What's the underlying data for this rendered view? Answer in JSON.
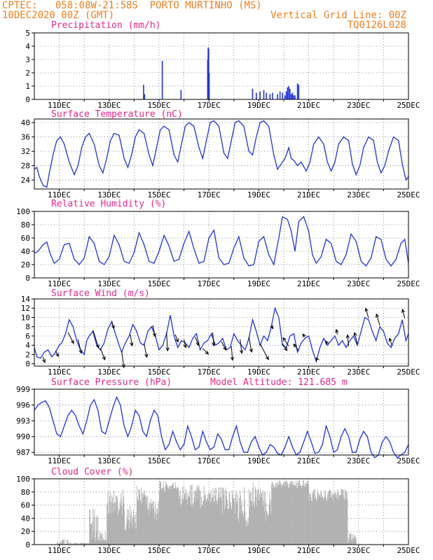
{
  "header": {
    "line1": "CPTEC:   058:08W-21:58S  PORTO MURTINHO (MS)",
    "line2": "10DEC2020 00Z (GMT)",
    "right1": "Vertical Grid Line: 00Z",
    "right2": "TQ0126L028"
  },
  "colors": {
    "header": "#f07f1e",
    "title": "#e8288c",
    "line": "#2233dd",
    "cloud": "#b0b0b0",
    "arrow": "#000000"
  },
  "x_tick_labels": [
    "11DEC",
    "13DEC",
    "15DEC",
    "17DEC",
    "19DEC",
    "21DEC",
    "23DEC",
    "25DEC"
  ],
  "chart_data": [
    {
      "id": "precip",
      "type": "bar",
      "title": "Precipitation (mm/h)",
      "x_unit": "days since 10DEC2020 00Z",
      "xlim": [
        0,
        15
      ],
      "yticks": [
        0,
        1,
        2,
        3,
        4,
        5
      ],
      "ylim": [
        0,
        5
      ],
      "x": [
        4.38,
        4.42,
        5.13,
        5.88,
        6.95,
        6.97,
        6.99,
        7.01,
        8.75,
        8.9,
        9.05,
        9.2,
        9.3,
        9.45,
        9.55,
        9.75,
        9.85,
        9.95,
        10.05,
        10.1,
        10.15,
        10.2,
        10.25,
        10.3,
        10.35,
        10.4,
        10.45,
        10.55,
        10.6
      ],
      "values": [
        1.1,
        0.4,
        2.9,
        0.7,
        3.0,
        3.9,
        3.8,
        2.0,
        0.8,
        0.5,
        0.6,
        0.7,
        0.5,
        0.4,
        0.5,
        0.4,
        0.6,
        0.5,
        0.3,
        0.6,
        0.9,
        1.0,
        0.8,
        0.4,
        0.5,
        0.3,
        0.3,
        1.2,
        1.1
      ]
    },
    {
      "id": "temp",
      "type": "line",
      "title": "Surface Temperature (nC)",
      "x_unit": "days since 10DEC2020 00Z",
      "xlim": [
        0,
        15
      ],
      "yticks": [
        24,
        28,
        32,
        36,
        40
      ],
      "ylim": [
        21.5,
        41
      ],
      "x": [
        0,
        0.1,
        0.2,
        0.35,
        0.5,
        0.6,
        0.75,
        0.9,
        1.05,
        1.2,
        1.4,
        1.6,
        1.75,
        1.9,
        2.05,
        2.2,
        2.4,
        2.6,
        2.75,
        2.9,
        3.05,
        3.2,
        3.4,
        3.6,
        3.75,
        3.9,
        4.05,
        4.2,
        4.4,
        4.6,
        4.75,
        4.9,
        5.05,
        5.2,
        5.4,
        5.6,
        5.75,
        5.9,
        6.05,
        6.2,
        6.4,
        6.6,
        6.75,
        6.9,
        7.05,
        7.2,
        7.4,
        7.6,
        7.75,
        7.9,
        8.05,
        8.2,
        8.4,
        8.6,
        8.75,
        8.9,
        9.05,
        9.2,
        9.4,
        9.6,
        9.75,
        9.9,
        10.05,
        10.2,
        10.3,
        10.4,
        10.55,
        10.7,
        10.9,
        11.05,
        11.2,
        11.4,
        11.6,
        11.75,
        11.9,
        12.05,
        12.2,
        12.4,
        12.6,
        12.75,
        12.9,
        13.05,
        13.2,
        13.4,
        13.6,
        13.75,
        13.9,
        14.05,
        14.2,
        14.4,
        14.6,
        14.75,
        14.9,
        15
      ],
      "values": [
        27,
        27.5,
        25,
        22.5,
        22,
        26,
        31,
        35,
        36,
        34,
        29,
        25.5,
        28,
        33,
        36,
        37,
        34,
        28,
        26,
        30,
        35,
        37,
        36.5,
        30,
        27.5,
        31,
        36,
        38,
        37,
        31,
        28,
        33,
        38,
        39,
        38,
        31,
        29,
        34,
        39,
        40,
        39,
        33,
        30,
        35,
        40,
        40.5,
        39,
        31.5,
        30,
        35,
        40,
        40.5,
        39,
        32,
        31,
        36,
        40,
        40.5,
        39,
        31,
        27,
        28.5,
        30,
        33,
        30,
        29.5,
        28,
        29,
        26.5,
        29,
        34,
        36,
        34,
        29,
        26.5,
        29,
        34,
        36,
        35,
        28.5,
        25.5,
        28,
        33,
        36,
        35,
        29,
        26,
        28,
        32,
        36,
        35,
        28.5,
        24,
        25
      ]
    },
    {
      "id": "rh",
      "type": "line",
      "title": "Relative Humidity (%)",
      "x_unit": "days since 10DEC2020 00Z",
      "xlim": [
        0,
        15
      ],
      "yticks": [
        0,
        20,
        40,
        60,
        80,
        100
      ],
      "ylim": [
        0,
        100
      ],
      "x": [
        0,
        0.15,
        0.35,
        0.5,
        0.65,
        0.8,
        1.0,
        1.2,
        1.4,
        1.6,
        1.8,
        2.0,
        2.2,
        2.4,
        2.6,
        2.8,
        3.0,
        3.2,
        3.4,
        3.6,
        3.8,
        4.0,
        4.2,
        4.4,
        4.6,
        4.8,
        5.0,
        5.2,
        5.4,
        5.6,
        5.8,
        6.0,
        6.2,
        6.4,
        6.6,
        6.8,
        7.0,
        7.2,
        7.4,
        7.6,
        7.8,
        8.0,
        8.2,
        8.4,
        8.6,
        8.8,
        9.0,
        9.2,
        9.4,
        9.6,
        9.8,
        9.95,
        10.15,
        10.3,
        10.45,
        10.6,
        10.8,
        11.0,
        11.15,
        11.3,
        11.5,
        11.7,
        11.9,
        12.1,
        12.3,
        12.5,
        12.7,
        12.9,
        13.1,
        13.3,
        13.5,
        13.7,
        13.9,
        14.1,
        14.3,
        14.5,
        14.7,
        14.85,
        15
      ],
      "values": [
        37,
        40,
        50,
        54,
        35,
        22,
        28,
        50,
        52,
        28,
        20,
        30,
        62,
        52,
        25,
        20,
        32,
        64,
        50,
        25,
        22,
        38,
        68,
        50,
        25,
        22,
        40,
        64,
        48,
        25,
        28,
        52,
        70,
        44,
        22,
        25,
        60,
        72,
        30,
        20,
        22,
        45,
        62,
        30,
        18,
        20,
        55,
        62,
        35,
        20,
        60,
        92,
        88,
        70,
        40,
        85,
        92,
        70,
        35,
        22,
        32,
        58,
        52,
        25,
        20,
        35,
        66,
        55,
        25,
        18,
        30,
        62,
        58,
        28,
        18,
        28,
        52,
        58,
        22
      ]
    },
    {
      "id": "wind",
      "type": "line",
      "title": "Surface Wind (m/s)",
      "x_unit": "days since 10DEC2020 00Z",
      "xlim": [
        0,
        15
      ],
      "yticks": [
        0,
        2,
        4,
        6,
        8,
        10,
        12,
        14
      ],
      "ylim": [
        -0.5,
        14
      ],
      "x": [
        0,
        0.1,
        0.25,
        0.4,
        0.55,
        0.7,
        0.85,
        1.0,
        1.1,
        1.25,
        1.4,
        1.55,
        1.7,
        1.85,
        2.0,
        2.1,
        2.2,
        2.35,
        2.5,
        2.65,
        2.8,
        2.95,
        3.1,
        3.25,
        3.4,
        3.5,
        3.65,
        3.8,
        3.95,
        4.1,
        4.25,
        4.4,
        4.55,
        4.7,
        4.85,
        5.0,
        5.15,
        5.3,
        5.45,
        5.6,
        5.75,
        5.9,
        6.05,
        6.2,
        6.35,
        6.5,
        6.65,
        6.8,
        6.95,
        7.1,
        7.25,
        7.4,
        7.55,
        7.7,
        7.85,
        8.0,
        8.15,
        8.3,
        8.45,
        8.6,
        8.75,
        8.9,
        9.05,
        9.2,
        9.35,
        9.5,
        9.65,
        9.8,
        9.95,
        10.1,
        10.25,
        10.4,
        10.55,
        10.7,
        10.85,
        11.0,
        11.15,
        11.3,
        11.45,
        11.6,
        11.75,
        11.9,
        12.05,
        12.2,
        12.35,
        12.5,
        12.65,
        12.8,
        12.95,
        13.1,
        13.25,
        13.4,
        13.55,
        13.7,
        13.85,
        14.0,
        14.15,
        14.3,
        14.45,
        14.6,
        14.75,
        14.9,
        15
      ],
      "values": [
        3.5,
        1.5,
        1.2,
        2.5,
        3.0,
        1.5,
        2.5,
        4.0,
        4.5,
        6.5,
        9.5,
        8.0,
        5.0,
        3.0,
        2.0,
        5.0,
        6.0,
        7.0,
        4.0,
        3.0,
        4.5,
        7.5,
        9.0,
        6.5,
        4.0,
        2.5,
        4.5,
        6.0,
        8.5,
        7.0,
        4.5,
        4.0,
        7.0,
        8.0,
        6.0,
        3.0,
        4.0,
        6.5,
        10.5,
        6.0,
        3.5,
        5.0,
        4.5,
        3.5,
        5.5,
        6.5,
        3.0,
        4.5,
        5.0,
        6.5,
        4.0,
        4.5,
        5.5,
        3.0,
        3.5,
        6.5,
        5.0,
        4.0,
        3.0,
        5.5,
        9.5,
        7.0,
        4.0,
        6.0,
        5.0,
        8.0,
        12.0,
        10.0,
        4.0,
        3.5,
        6.0,
        6.5,
        2.5,
        4.5,
        5.5,
        6.0,
        3.0,
        0.5,
        3.5,
        5.5,
        4.0,
        5.0,
        6.0,
        4.0,
        5.0,
        3.5,
        5.0,
        6.0,
        4.0,
        7.0,
        10.0,
        9.5,
        7.0,
        5.0,
        8.0,
        7.0,
        4.5,
        3.5,
        5.5,
        6.5,
        9.5,
        5.0,
        6.5
      ],
      "arrows": [
        {
          "x": 0.35,
          "u": 0.3,
          "v": 1.0
        },
        {
          "x": 0.85,
          "u": 0.5,
          "v": 1.0
        },
        {
          "x": 1.35,
          "u": 1.0,
          "v": 2.0
        },
        {
          "x": 1.75,
          "u": 0.6,
          "v": 2.5
        },
        {
          "x": 2.35,
          "u": 1.0,
          "v": 3.2
        },
        {
          "x": 2.65,
          "u": 0.8,
          "v": 2.0
        },
        {
          "x": 3.1,
          "u": 0.4,
          "v": 1.4
        },
        {
          "x": 3.5,
          "u": 0.4,
          "v": 3.0
        },
        {
          "x": 3.85,
          "u": 0.3,
          "v": 2.0
        },
        {
          "x": 4.4,
          "u": 0.5,
          "v": 2.4
        },
        {
          "x": 4.75,
          "u": 0.4,
          "v": 2.0
        },
        {
          "x": 5.3,
          "u": 0.2,
          "v": 3.3
        },
        {
          "x": 5.65,
          "u": 0.5,
          "v": 1.3
        },
        {
          "x": 6.0,
          "u": 0.3,
          "v": 1.5
        },
        {
          "x": 6.45,
          "u": 0.6,
          "v": 1.5
        },
        {
          "x": 6.75,
          "u": 1.0,
          "v": 1.0
        },
        {
          "x": 7.15,
          "u": 0.2,
          "v": 2.4
        },
        {
          "x": 7.5,
          "u": 0.8,
          "v": 1.5
        },
        {
          "x": 7.9,
          "u": 0.2,
          "v": 2.5
        },
        {
          "x": 8.25,
          "u": 0.3,
          "v": 2.5
        },
        {
          "x": 8.6,
          "u": 0.5,
          "v": 2.7
        },
        {
          "x": 9.05,
          "u": 1.5,
          "v": 2.8
        },
        {
          "x": 9.5,
          "u": 0.3,
          "v": 0.6
        },
        {
          "x": 9.95,
          "u": 0.8,
          "v": 1.2
        },
        {
          "x": 10.2,
          "u": -1.0,
          "v": -1.5
        },
        {
          "x": 10.6,
          "u": -0.9,
          "v": -1.2
        },
        {
          "x": 10.85,
          "u": -0.4,
          "v": -0.5
        },
        {
          "x": 11.35,
          "u": -0.2,
          "v": -0.4
        },
        {
          "x": 11.75,
          "u": -0.3,
          "v": -0.5
        },
        {
          "x": 12.15,
          "u": -0.2,
          "v": -0.9
        },
        {
          "x": 12.6,
          "u": -0.2,
          "v": -2.0
        },
        {
          "x": 12.95,
          "u": -0.5,
          "v": -2.0
        },
        {
          "x": 13.4,
          "u": -0.5,
          "v": -1.8
        },
        {
          "x": 13.85,
          "u": -0.6,
          "v": -2.0
        },
        {
          "x": 14.35,
          "u": -0.5,
          "v": -1.4
        },
        {
          "x": 14.85,
          "u": -0.4,
          "v": -1.6
        }
      ]
    },
    {
      "id": "pres",
      "type": "line",
      "title": "Surface Pressure (hPa)",
      "subtitle": "Model Altitude: 121.685 m",
      "x_unit": "days since 10DEC2020 00Z",
      "xlim": [
        0,
        15
      ],
      "yticks": [
        987,
        990,
        993,
        996,
        999
      ],
      "ylim": [
        986.5,
        999
      ],
      "x": [
        0,
        0.15,
        0.3,
        0.45,
        0.6,
        0.75,
        0.9,
        1.05,
        1.2,
        1.35,
        1.5,
        1.65,
        1.8,
        1.95,
        2.1,
        2.25,
        2.4,
        2.55,
        2.7,
        2.85,
        3.0,
        3.15,
        3.3,
        3.45,
        3.6,
        3.75,
        3.9,
        4.05,
        4.2,
        4.35,
        4.5,
        4.65,
        4.8,
        4.95,
        5.1,
        5.25,
        5.4,
        5.55,
        5.7,
        5.85,
        6.0,
        6.15,
        6.3,
        6.45,
        6.6,
        6.75,
        6.9,
        7.05,
        7.2,
        7.35,
        7.5,
        7.65,
        7.8,
        7.95,
        8.1,
        8.25,
        8.4,
        8.55,
        8.7,
        8.85,
        9.0,
        9.15,
        9.3,
        9.45,
        9.6,
        9.75,
        9.9,
        10.05,
        10.2,
        10.35,
        10.5,
        10.65,
        10.8,
        10.95,
        11.1,
        11.25,
        11.4,
        11.55,
        11.7,
        11.85,
        12.0,
        12.15,
        12.3,
        12.45,
        12.6,
        12.75,
        12.9,
        13.05,
        13.2,
        13.35,
        13.5,
        13.65,
        13.8,
        13.95,
        14.1,
        14.25,
        14.4,
        14.55,
        14.7,
        14.85,
        15
      ],
      "values": [
        995,
        996,
        996.5,
        996.8,
        995.5,
        993,
        990.5,
        990,
        992,
        994,
        995,
        994,
        992,
        990.5,
        993,
        996,
        997,
        995,
        991,
        990.5,
        993,
        995.5,
        997.5,
        996,
        992,
        990,
        992,
        995,
        994,
        991,
        990,
        993,
        995,
        994,
        990,
        987.5,
        988.5,
        991,
        989,
        987.5,
        988.5,
        992,
        990,
        987.5,
        988,
        991,
        989,
        987.5,
        988,
        990.5,
        989.5,
        987.5,
        987.5,
        990,
        992,
        989,
        987,
        987,
        989,
        990,
        988,
        986.5,
        987,
        988.5,
        988,
        986.8,
        986.5,
        988,
        990,
        988,
        986.5,
        987,
        989,
        991,
        989,
        986.8,
        987,
        988.5,
        992,
        990,
        987,
        987.5,
        990,
        991.5,
        990,
        987,
        987,
        989.5,
        991,
        990,
        987,
        986,
        986.5,
        989,
        990,
        989,
        987,
        986,
        986.5,
        987,
        988.5
      ]
    },
    {
      "id": "cloud",
      "type": "bar",
      "title": "Cloud Cover (%)",
      "x_unit": "days since 10DEC2020 00Z",
      "xlim": [
        0,
        15
      ],
      "yticks": [
        0,
        20,
        40,
        60,
        80,
        100
      ],
      "ylim": [
        0,
        100
      ],
      "segments": [
        {
          "x0": 0,
          "x1": 0.9,
          "lo": 0,
          "hi": 0
        },
        {
          "x0": 0.9,
          "x1": 1.35,
          "lo": 0,
          "hi": 10
        },
        {
          "x0": 1.35,
          "x1": 2.2,
          "lo": 0,
          "hi": 3
        },
        {
          "x0": 2.2,
          "x1": 2.55,
          "lo": 5,
          "hi": 55
        },
        {
          "x0": 2.55,
          "x1": 2.9,
          "lo": 3,
          "hi": 20
        },
        {
          "x0": 2.9,
          "x1": 3.6,
          "lo": 45,
          "hi": 85
        },
        {
          "x0": 3.6,
          "x1": 4.1,
          "lo": 20,
          "hi": 60
        },
        {
          "x0": 4.1,
          "x1": 4.5,
          "lo": 60,
          "hi": 90
        },
        {
          "x0": 4.5,
          "x1": 5.0,
          "lo": 35,
          "hi": 80
        },
        {
          "x0": 5.0,
          "x1": 5.8,
          "lo": 80,
          "hi": 97
        },
        {
          "x0": 5.8,
          "x1": 6.25,
          "lo": 60,
          "hi": 92
        },
        {
          "x0": 6.25,
          "x1": 6.85,
          "lo": 55,
          "hi": 95
        },
        {
          "x0": 6.85,
          "x1": 7.5,
          "lo": 60,
          "hi": 90
        },
        {
          "x0": 7.5,
          "x1": 8.1,
          "lo": 45,
          "hi": 88
        },
        {
          "x0": 8.1,
          "x1": 8.6,
          "lo": 25,
          "hi": 90
        },
        {
          "x0": 8.6,
          "x1": 9.1,
          "lo": 55,
          "hi": 95
        },
        {
          "x0": 9.1,
          "x1": 9.5,
          "lo": 35,
          "hi": 85
        },
        {
          "x0": 9.5,
          "x1": 11.0,
          "lo": 85,
          "hi": 98
        },
        {
          "x0": 11.0,
          "x1": 12.55,
          "lo": 65,
          "hi": 85
        },
        {
          "x0": 12.55,
          "x1": 12.9,
          "lo": 3,
          "hi": 20
        },
        {
          "x0": 12.9,
          "x1": 15,
          "lo": 0,
          "hi": 0
        }
      ]
    }
  ]
}
